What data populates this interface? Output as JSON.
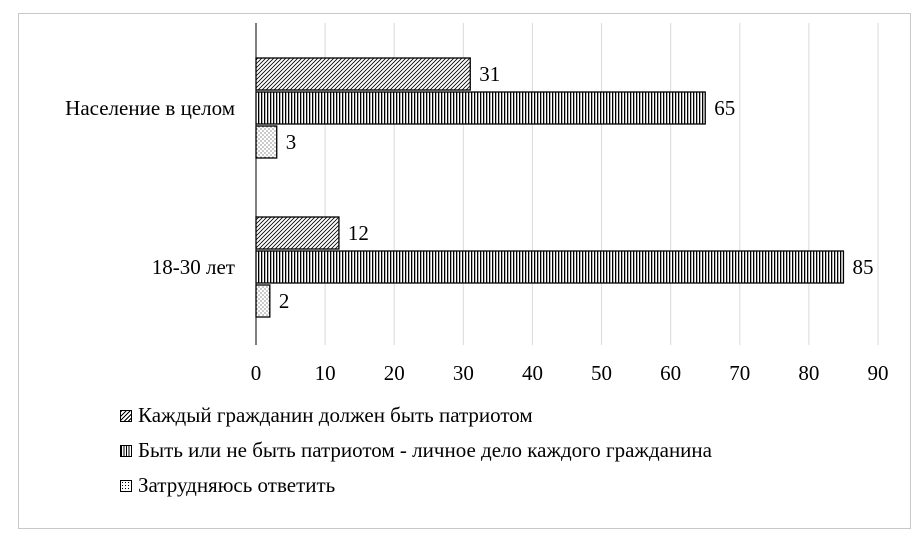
{
  "chart_data": {
    "type": "bar",
    "orientation": "horizontal",
    "categories": [
      "Население в целом",
      "18-30 лет"
    ],
    "series": [
      {
        "name": "Каждый гражданин должен быть патриотом",
        "values": [
          31,
          12
        ],
        "pattern": "diag"
      },
      {
        "name": "Быть или не быть патриотом - личное дело каждого гражданина",
        "values": [
          65,
          85
        ],
        "pattern": "vert"
      },
      {
        "name": "Затрудняюсь ответить",
        "values": [
          3,
          2
        ],
        "pattern": "dots"
      }
    ],
    "xlim": [
      0,
      90
    ],
    "ticks": [
      0,
      10,
      20,
      30,
      40,
      50,
      60,
      70,
      80,
      90
    ],
    "grid": true,
    "legend_position": "bottom"
  }
}
